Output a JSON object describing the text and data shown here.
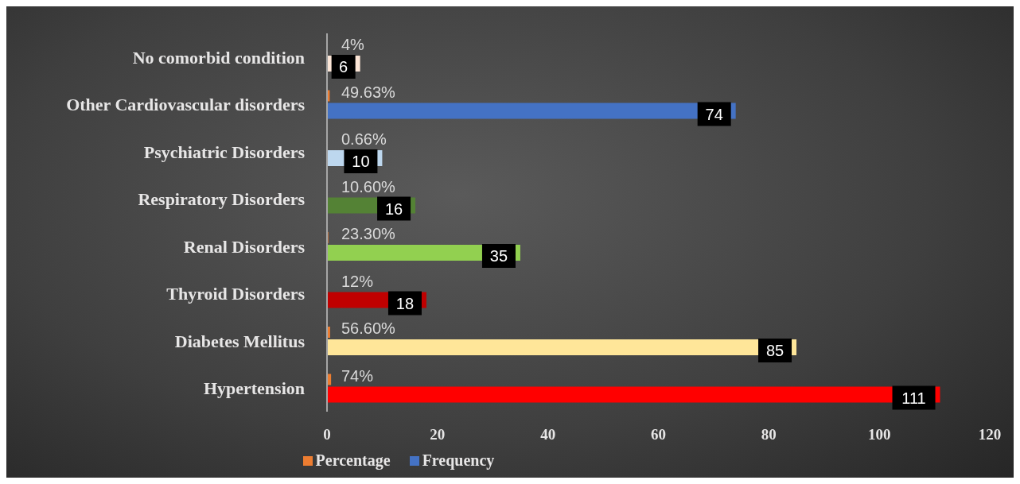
{
  "chart_data": {
    "type": "bar",
    "orientation": "horizontal",
    "categories": [
      "No comorbid condition",
      "Other Cardiovascular disorders",
      "Psychiatric Disorders",
      "Respiratory Disorders",
      "Renal Disorders",
      "Thyroid Disorders",
      "Diabetes Mellitus",
      "Hypertension"
    ],
    "series": [
      {
        "name": "Percentage",
        "color": "#ed7d31",
        "values": [
          0.04,
          0.4963,
          0.0066,
          0.106,
          0.233,
          0.12,
          0.566,
          0.74
        ],
        "value_labels": [
          "4%",
          "49.63%",
          "0.66%",
          "10.60%",
          "23.30%",
          "12%",
          "56.60%",
          "74%"
        ]
      },
      {
        "name": "Frequency",
        "color": "#4472c4",
        "colors": [
          "#fbe5d6",
          "#4472c4",
          "#bdd7ee",
          "#548235",
          "#92d050",
          "#c00000",
          "#ffe699",
          "#ff0000"
        ],
        "values": [
          6,
          74,
          10,
          16,
          35,
          18,
          85,
          111
        ],
        "value_labels": [
          "6",
          "74",
          "10",
          "16",
          "35",
          "18",
          "85",
          "111"
        ]
      }
    ],
    "xlim": [
      0,
      120
    ],
    "xticks": [
      0,
      20,
      40,
      60,
      80,
      100,
      120
    ],
    "grid": false,
    "legend": "bottom"
  }
}
